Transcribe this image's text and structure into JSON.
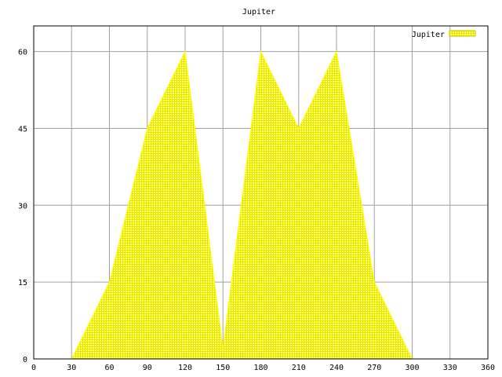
{
  "chart_data": {
    "type": "area",
    "title": "Jupiter",
    "xlabel": "",
    "ylabel": "",
    "xlim": [
      0,
      360
    ],
    "ylim": [
      0,
      65
    ],
    "x_ticks": [
      0,
      30,
      60,
      90,
      120,
      150,
      180,
      210,
      240,
      270,
      300,
      330,
      360
    ],
    "y_ticks": [
      0,
      15,
      30,
      45,
      60
    ],
    "grid": true,
    "legend_position": "top-right",
    "series": [
      {
        "name": "Jupiter",
        "color": "#ffff00",
        "x": [
          30,
          60,
          90,
          120,
          150,
          180,
          210,
          240,
          270,
          300
        ],
        "y": [
          0,
          15,
          45,
          60,
          2,
          60,
          45,
          60,
          15,
          0
        ]
      }
    ]
  }
}
